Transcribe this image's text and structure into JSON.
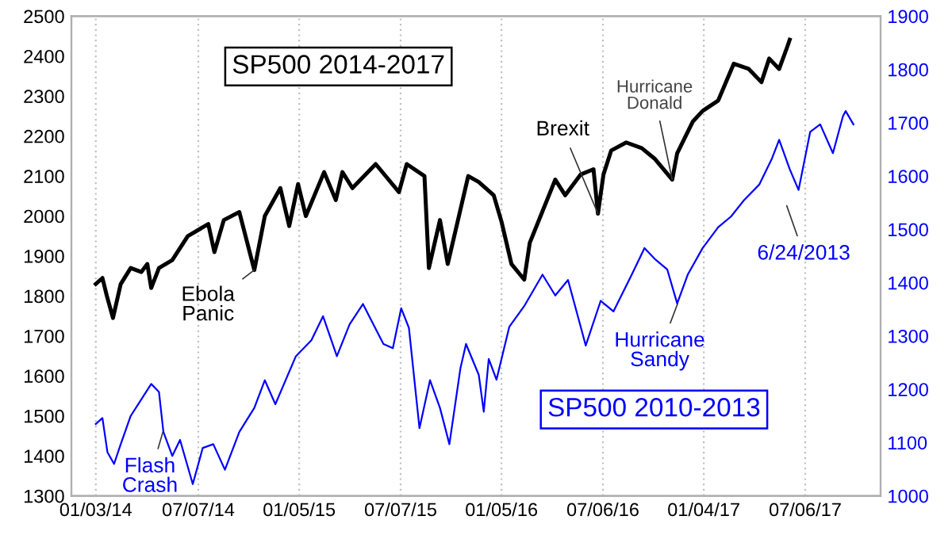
{
  "chart_data": {
    "type": "line",
    "series": [
      {
        "name": "SP500 2014-2017",
        "color": "#000000",
        "x": [
          "2014-01-03",
          "2014-01-15",
          "2014-01-23",
          "2014-02-03",
          "2014-02-17",
          "2014-03-07",
          "2014-03-26",
          "2014-04-06",
          "2014-04-13",
          "2014-04-27",
          "2014-05-21",
          "2014-06-18",
          "2014-07-25",
          "2014-08-05",
          "2014-08-22",
          "2014-09-19",
          "2014-10-16",
          "2014-11-04",
          "2014-12-02",
          "2014-12-18",
          "2015-01-03",
          "2015-01-17",
          "2015-02-19",
          "2015-03-12",
          "2015-03-24",
          "2015-04-11",
          "2015-05-23",
          "2015-07-04",
          "2015-07-18",
          "2015-08-19",
          "2015-08-27",
          "2015-09-16",
          "2015-09-30",
          "2015-11-06",
          "2015-11-25",
          "2015-12-22",
          "2016-01-05",
          "2016-01-23",
          "2016-02-15",
          "2016-02-25",
          "2016-03-19",
          "2016-04-11",
          "2016-04-29",
          "2016-05-27",
          "2016-06-19",
          "2016-06-27",
          "2016-07-07",
          "2016-07-21",
          "2016-08-17",
          "2016-09-14",
          "2016-10-07",
          "2016-11-08",
          "2016-11-17",
          "2016-12-15",
          "2017-01-02",
          "2017-01-30",
          "2017-02-27",
          "2017-03-26",
          "2017-04-18",
          "2017-05-02",
          "2017-05-20",
          "2017-06-03",
          "2017-06-08"
        ],
        "values": [
          1830,
          1845,
          1800,
          1745,
          1830,
          1870,
          1860,
          1880,
          1820,
          1870,
          1890,
          1950,
          1980,
          1910,
          1990,
          2010,
          1865,
          2000,
          2070,
          1975,
          2080,
          2000,
          2110,
          2040,
          2110,
          2070,
          2130,
          2060,
          2130,
          2100,
          1870,
          1990,
          1880,
          2100,
          2085,
          2052,
          1986,
          1880,
          1841,
          1933,
          2012,
          2091,
          2052,
          2104,
          2117,
          2006,
          2104,
          2164,
          2184,
          2170,
          2144,
          2091,
          2157,
          2236,
          2263,
          2289,
          2381,
          2368,
          2335,
          2394,
          2368,
          2421,
          2441
        ]
      },
      {
        "name": "SP500 2010-2013",
        "color": "#0000ff",
        "axis": "y2",
        "x": [
          "2014-01-03",
          "2014-01-15",
          "2014-01-24",
          "2014-02-05",
          "2014-02-17",
          "2014-03-07",
          "2014-04-13",
          "2014-04-27",
          "2014-05-05",
          "2014-05-21",
          "2014-06-04",
          "2014-06-27",
          "2014-07-15",
          "2014-08-03",
          "2014-08-24",
          "2014-09-19",
          "2014-10-16",
          "2014-11-04",
          "2014-11-23",
          "2014-12-30",
          "2015-01-27",
          "2015-02-17",
          "2015-03-14",
          "2015-04-06",
          "2015-04-30",
          "2015-06-06",
          "2015-06-23",
          "2015-07-08",
          "2015-07-22",
          "2015-08-10",
          "2015-08-29",
          "2015-09-16",
          "2015-10-03",
          "2015-10-23",
          "2015-11-02",
          "2015-11-25",
          "2015-12-04",
          "2015-12-13",
          "2015-12-27",
          "2016-01-19",
          "2016-02-15",
          "2016-03-19",
          "2016-04-11",
          "2016-05-04",
          "2016-05-27",
          "2016-06-05",
          "2016-07-02",
          "2016-07-25",
          "2016-08-27",
          "2016-09-19",
          "2016-10-07",
          "2016-10-30",
          "2016-11-17",
          "2016-12-06",
          "2017-01-02",
          "2017-01-30",
          "2017-02-22",
          "2017-03-17",
          "2017-04-14",
          "2017-05-07",
          "2017-05-20",
          "2017-06-08",
          "2017-06-24",
          "2017-07-15",
          "2017-08-02",
          "2017-08-25",
          "2017-09-12",
          "2017-09-17",
          "2017-10-01"
        ],
        "values": [
          1135,
          1146,
          1082,
          1060,
          1097,
          1150,
          1210,
          1195,
          1120,
          1075,
          1105,
          1022,
          1090,
          1097,
          1049,
          1120,
          1165,
          1217,
          1172,
          1262,
          1292,
          1337,
          1262,
          1322,
          1360,
          1285,
          1277,
          1352,
          1315,
          1127,
          1217,
          1165,
          1097,
          1240,
          1285,
          1227,
          1158,
          1257,
          1218,
          1317,
          1356,
          1415,
          1376,
          1405,
          1317,
          1282,
          1366,
          1346,
          1415,
          1465,
          1445,
          1425,
          1361,
          1415,
          1465,
          1504,
          1524,
          1554,
          1584,
          1633,
          1668,
          1613,
          1574,
          1683,
          1697,
          1643,
          1712,
          1722,
          1697
        ]
      }
    ],
    "xlim": [
      "2013-11-20",
      "2017-11-19"
    ],
    "xticks": [
      {
        "value": "2014-01-03",
        "label": "01/03/14"
      },
      {
        "value": "2014-07-07",
        "label": "07/07/14"
      },
      {
        "value": "2015-01-05",
        "label": "01/05/15"
      },
      {
        "value": "2015-07-07",
        "label": "07/07/15"
      },
      {
        "value": "2016-01-05",
        "label": "01/05/16"
      },
      {
        "value": "2016-07-06",
        "label": "07/06/16"
      },
      {
        "value": "2017-01-04",
        "label": "01/04/17"
      },
      {
        "value": "2017-07-06",
        "label": "07/06/17"
      }
    ],
    "ylim": [
      1300,
      2500
    ],
    "yticks": [
      1300,
      1400,
      1500,
      1600,
      1700,
      1800,
      1900,
      2000,
      2100,
      2200,
      2300,
      2400,
      2500
    ],
    "y2lim": [
      1000,
      1900
    ],
    "y2ticks": [
      1000,
      1100,
      1200,
      1300,
      1400,
      1500,
      1600,
      1700,
      1800,
      1900
    ],
    "grid": "x",
    "annotations": [
      {
        "text": "Ebola\nPanic",
        "x": "2014-10-16",
        "y": 1865
      },
      {
        "text": "Brexit",
        "x": "2016-06-27",
        "y": 2006
      },
      {
        "text": "Hurricane\nDonald",
        "x": "2016-11-08",
        "y": 2091
      },
      "Flash\nCrash",
      "Hurricane\nSandy",
      "6/24/2013"
    ]
  }
}
